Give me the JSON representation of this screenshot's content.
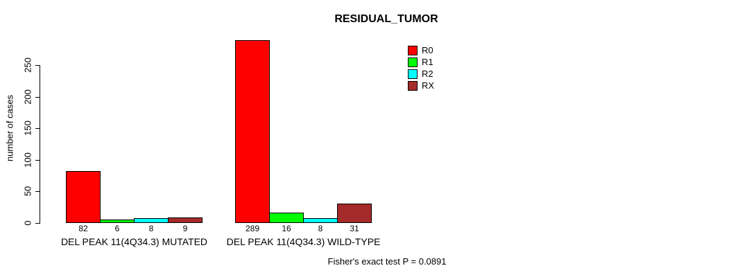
{
  "title": "RESIDUAL_TUMOR",
  "caption": "Fisher's exact test P = 0.0891",
  "chart_data": {
    "type": "bar",
    "title": "RESIDUAL_TUMOR",
    "xlabel": "",
    "ylabel": "number of cases",
    "ylim": [
      0,
      290
    ],
    "yticks": [
      0,
      50,
      100,
      150,
      200,
      250
    ],
    "grid": false,
    "legend_position": "upper-right-outside",
    "categories": [
      "DEL PEAK 11(4Q34.3) MUTATED",
      "DEL PEAK 11(4Q34.3) WILD-TYPE"
    ],
    "series": [
      {
        "name": "R0",
        "color": "#ff0000",
        "values": [
          82,
          289
        ]
      },
      {
        "name": "R1",
        "color": "#00ff00",
        "values": [
          6,
          16
        ]
      },
      {
        "name": "R2",
        "color": "#00ffff",
        "values": [
          8,
          8
        ]
      },
      {
        "name": "RX",
        "color": "#a52a2a",
        "values": [
          9,
          31
        ]
      }
    ],
    "bar_value_labels": [
      [
        82,
        6,
        8,
        9
      ],
      [
        289,
        16,
        8,
        31
      ]
    ],
    "annotation": "Fisher's exact test P = 0.0891"
  }
}
